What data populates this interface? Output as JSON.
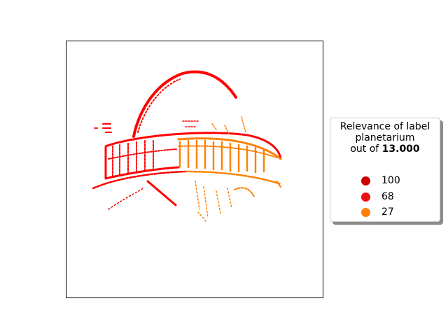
{
  "legend": {
    "title_line1": "Relevance of label",
    "title_line2": "planetarium",
    "title_line3_prefix": "out of ",
    "title_line3_value": "13.000",
    "items": [
      {
        "label": "100",
        "color": "#cc0000"
      },
      {
        "label": "68",
        "color": "#ee1111"
      },
      {
        "label": "27",
        "color": "#ff7f0e"
      }
    ]
  },
  "colors": {
    "high": "#ff0000",
    "low": "#ff8000"
  }
}
